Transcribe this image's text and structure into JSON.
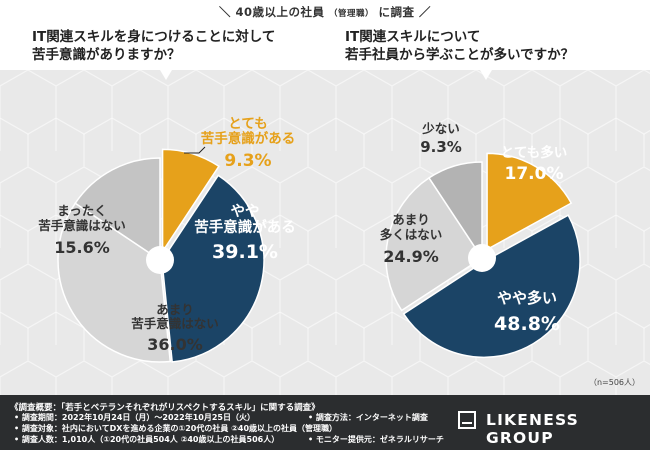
{
  "survey_title": "40歳以上の社員",
  "survey_title_sub": "（管理職）",
  "survey_title_suffix": "に調査",
  "questions": {
    "q1_line1": "IT関連スキルを身につけることに対して",
    "q1_line2": "苦手意識がありますか？",
    "q2_line1": "IT関連スキルについて",
    "q2_line2": "若手社員から学ぶことが多いですか？"
  },
  "sample_note": "（n=506人）",
  "colors": {
    "navy": "#1b4466",
    "gold": "#e6a11b",
    "gray_light": "#d6d6d6",
    "gray_mid": "#c4c4c4",
    "gray_dark": "#b3b3b3"
  },
  "chart_data": [
    {
      "type": "pie",
      "title": "IT関連スキルを身につけることに対して苦手意識がありますか？",
      "slices": [
        {
          "label_lines": [
            "とても",
            "苦手意識がある"
          ],
          "value": 9.3,
          "value_text": "9.3%",
          "color": "#e6a11b"
        },
        {
          "label_lines": [
            "やや",
            "苦手意識がある"
          ],
          "value": 39.1,
          "value_text": "39.1%",
          "color": "#1b4466"
        },
        {
          "label_lines": [
            "あまり",
            "苦手意識はない"
          ],
          "value": 36.0,
          "value_text": "36.0%",
          "color": "#d6d6d6"
        },
        {
          "label_lines": [
            "まったく",
            "苦手意識はない"
          ],
          "value": 15.6,
          "value_text": "15.6%",
          "color": "#c4c4c4"
        }
      ]
    },
    {
      "type": "pie",
      "title": "IT関連スキルについて若手社員から学ぶことが多いですか？",
      "slices": [
        {
          "label_lines": [
            "とても多い"
          ],
          "value": 17.0,
          "value_text": "17.0%",
          "color": "#e6a11b"
        },
        {
          "label_lines": [
            "やや多い"
          ],
          "value": 48.8,
          "value_text": "48.8%",
          "color": "#1b4466"
        },
        {
          "label_lines": [
            "あまり",
            "多くはない"
          ],
          "value": 24.9,
          "value_text": "24.9%",
          "color": "#d6d6d6"
        },
        {
          "label_lines": [
            "少ない"
          ],
          "value": 9.3,
          "value_text": "9.3%",
          "color": "#b3b3b3"
        }
      ]
    }
  ],
  "footer": {
    "title": "《調査概要：「若手とベテランそれぞれがリスペクトするスキル」に関する調査》",
    "period": "• 調査期間：2022年10月24日（月）～2022年10月25日（火）",
    "method": "• 調査方法：インターネット調査",
    "target": "• 調査対象：社内においてDXを進める企業の①20代の社員 ②40歳以上の社員（管理職）",
    "count": "• 調査人数：1,010人（①20代の社員504人 ②40歳以上の社員506人）",
    "provider": "• モニター提供元：ゼネラルリサーチ",
    "logo": "LIKENESS GROUP"
  }
}
